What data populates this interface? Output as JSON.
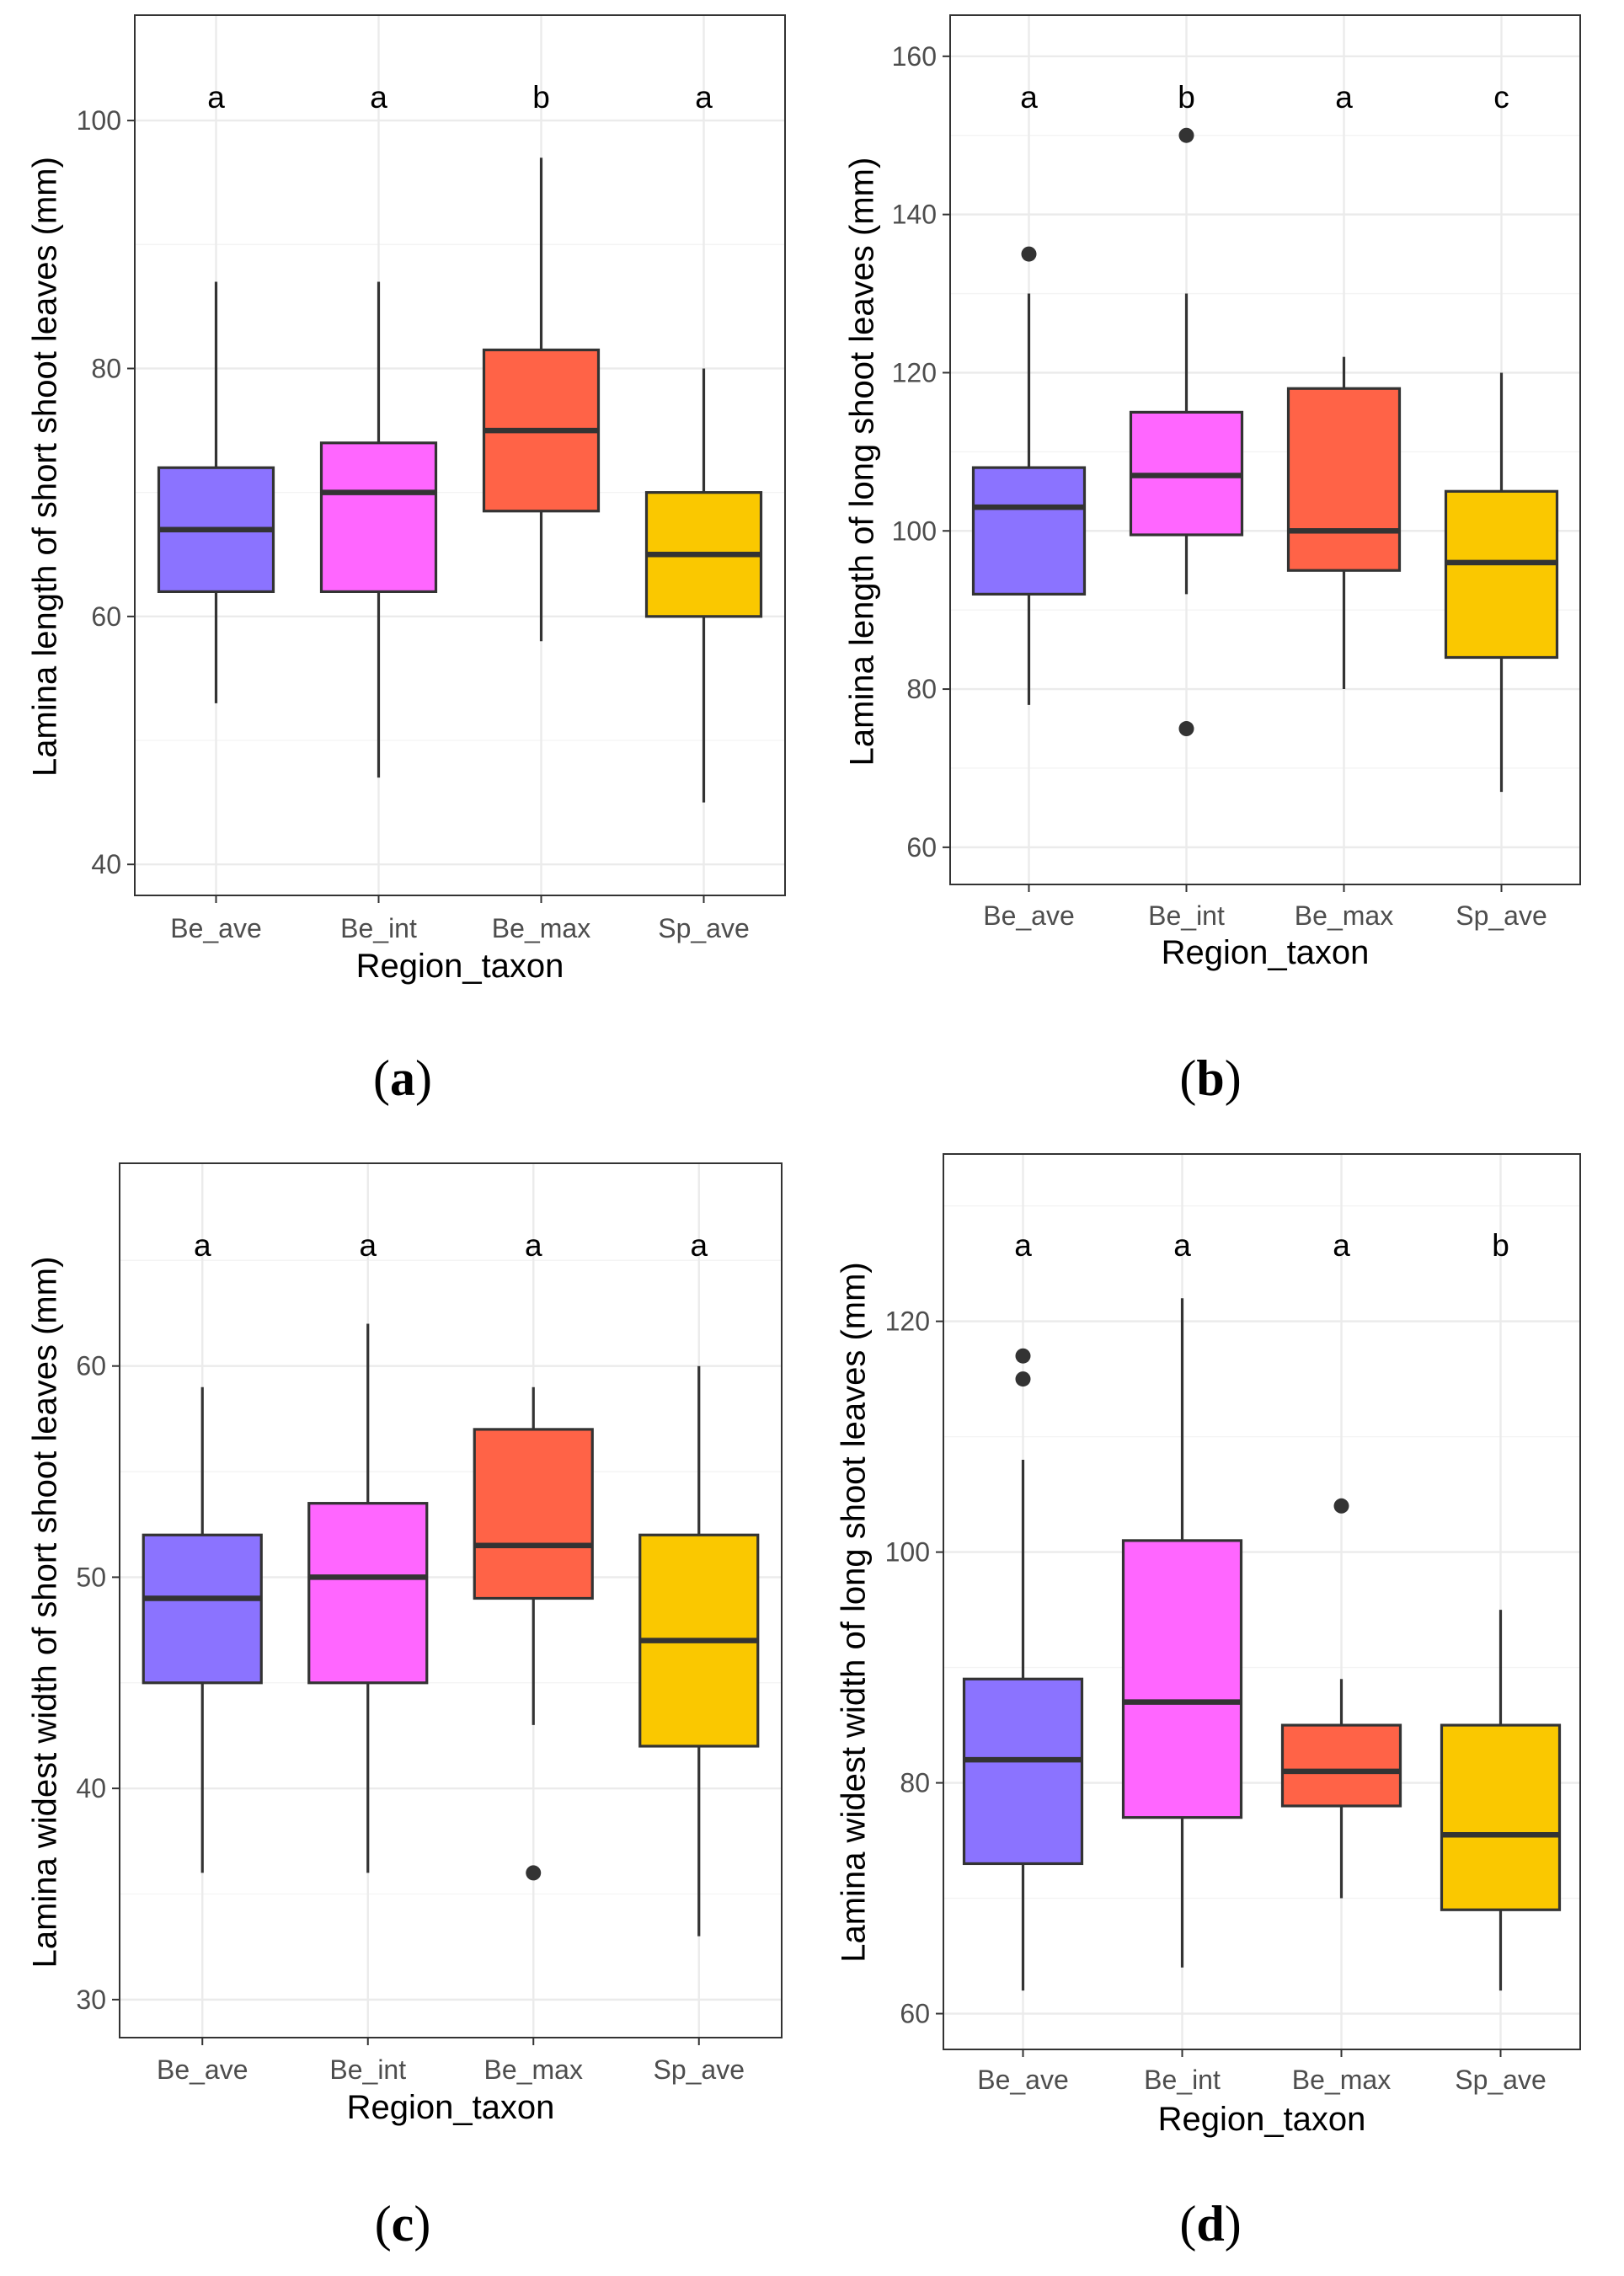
{
  "colors": {
    "Be_ave": "#8b73ff",
    "Be_int": "#ff66ff",
    "Be_max": "#ff6347",
    "Sp_ave": "#fac800"
  },
  "chart_data": [
    {
      "type": "boxplot",
      "panel": "a",
      "caption": {
        "open": "(",
        "letter": "a",
        "close": ")"
      },
      "xlabel": "Region_taxon",
      "ylabel": "Lamina length of short shoot leaves (mm)",
      "ylim": [
        37.5,
        108.5
      ],
      "yticks": [
        40,
        60,
        80,
        100
      ],
      "categories": [
        "Be_ave",
        "Be_int",
        "Be_max",
        "Sp_ave"
      ],
      "boxes": [
        {
          "category": "Be_ave",
          "min": 53,
          "q1": 62,
          "median": 67,
          "q3": 72,
          "max": 87,
          "outliers": [],
          "letter": "a"
        },
        {
          "category": "Be_int",
          "min": 47,
          "q1": 62,
          "median": 70,
          "q3": 74,
          "max": 87,
          "outliers": [],
          "letter": "a"
        },
        {
          "category": "Be_max",
          "min": 58,
          "q1": 68.5,
          "median": 75,
          "q3": 81.5,
          "max": 97,
          "outliers": [],
          "letter": "b"
        },
        {
          "category": "Sp_ave",
          "min": 45,
          "q1": 60,
          "median": 65,
          "q3": 70,
          "max": 80,
          "outliers": [],
          "letter": "a"
        }
      ]
    },
    {
      "type": "boxplot",
      "panel": "b",
      "caption": {
        "open": "(",
        "letter": "b",
        "close": ")"
      },
      "xlabel": "Region_taxon",
      "ylabel": "Lamina length of long shoot leaves (mm)",
      "ylim": [
        55.3,
        165.2
      ],
      "yticks": [
        60,
        80,
        100,
        120,
        140,
        160
      ],
      "categories": [
        "Be_ave",
        "Be_int",
        "Be_max",
        "Sp_ave"
      ],
      "boxes": [
        {
          "category": "Be_ave",
          "min": 78,
          "q1": 92,
          "median": 103,
          "q3": 108,
          "max": 130,
          "outliers": [
            135
          ],
          "letter": "a"
        },
        {
          "category": "Be_int",
          "min": 92,
          "q1": 99.5,
          "median": 107,
          "q3": 115,
          "max": 130,
          "outliers": [
            150,
            75
          ],
          "letter": "b"
        },
        {
          "category": "Be_max",
          "min": 80,
          "q1": 95,
          "median": 100,
          "q3": 118,
          "max": 122,
          "outliers": [],
          "letter": "a"
        },
        {
          "category": "Sp_ave",
          "min": 67,
          "q1": 84,
          "median": 96,
          "q3": 105,
          "max": 120,
          "outliers": [],
          "letter": "c"
        }
      ]
    },
    {
      "type": "boxplot",
      "panel": "c",
      "caption": {
        "open": "(",
        "letter": "c",
        "close": ")"
      },
      "xlabel": "Region_taxon",
      "ylabel": "Lamina widest width of short shoot leaves (mm)",
      "ylim": [
        28.2,
        69.6
      ],
      "yticks": [
        30,
        40,
        50,
        60
      ],
      "categories": [
        "Be_ave",
        "Be_int",
        "Be_max",
        "Sp_ave"
      ],
      "boxes": [
        {
          "category": "Be_ave",
          "min": 36,
          "q1": 45,
          "median": 49,
          "q3": 52,
          "max": 59,
          "outliers": [],
          "letter": "a"
        },
        {
          "category": "Be_int",
          "min": 36,
          "q1": 45,
          "median": 50,
          "q3": 53.5,
          "max": 62,
          "outliers": [],
          "letter": "a"
        },
        {
          "category": "Be_max",
          "min": 43,
          "q1": 49,
          "median": 51.5,
          "q3": 57,
          "max": 59,
          "outliers": [
            36
          ],
          "letter": "a"
        },
        {
          "category": "Sp_ave",
          "min": 33,
          "q1": 42,
          "median": 47,
          "q3": 52,
          "max": 60,
          "outliers": [],
          "letter": "a"
        }
      ]
    },
    {
      "type": "boxplot",
      "panel": "d",
      "caption": {
        "open": "(",
        "letter": "d",
        "close": ")"
      },
      "xlabel": "Region_taxon",
      "ylabel": "Lamina widest width of long shoot leaves (mm)",
      "ylim": [
        56.9,
        134.5
      ],
      "yticks": [
        60,
        80,
        100,
        120
      ],
      "categories": [
        "Be_ave",
        "Be_int",
        "Be_max",
        "Sp_ave"
      ],
      "boxes": [
        {
          "category": "Be_ave",
          "min": 62,
          "q1": 73,
          "median": 82,
          "q3": 89,
          "max": 108,
          "outliers": [
            115,
            117
          ],
          "letter": "a"
        },
        {
          "category": "Be_int",
          "min": 64,
          "q1": 77,
          "median": 87,
          "q3": 101,
          "max": 122,
          "outliers": [],
          "letter": "a"
        },
        {
          "category": "Be_max",
          "min": 70,
          "q1": 78,
          "median": 81,
          "q3": 85,
          "max": 89,
          "outliers": [
            104
          ],
          "letter": "a"
        },
        {
          "category": "Sp_ave",
          "min": 62,
          "q1": 69,
          "median": 75.5,
          "q3": 85,
          "max": 95,
          "outliers": [],
          "letter": "b"
        }
      ]
    }
  ]
}
